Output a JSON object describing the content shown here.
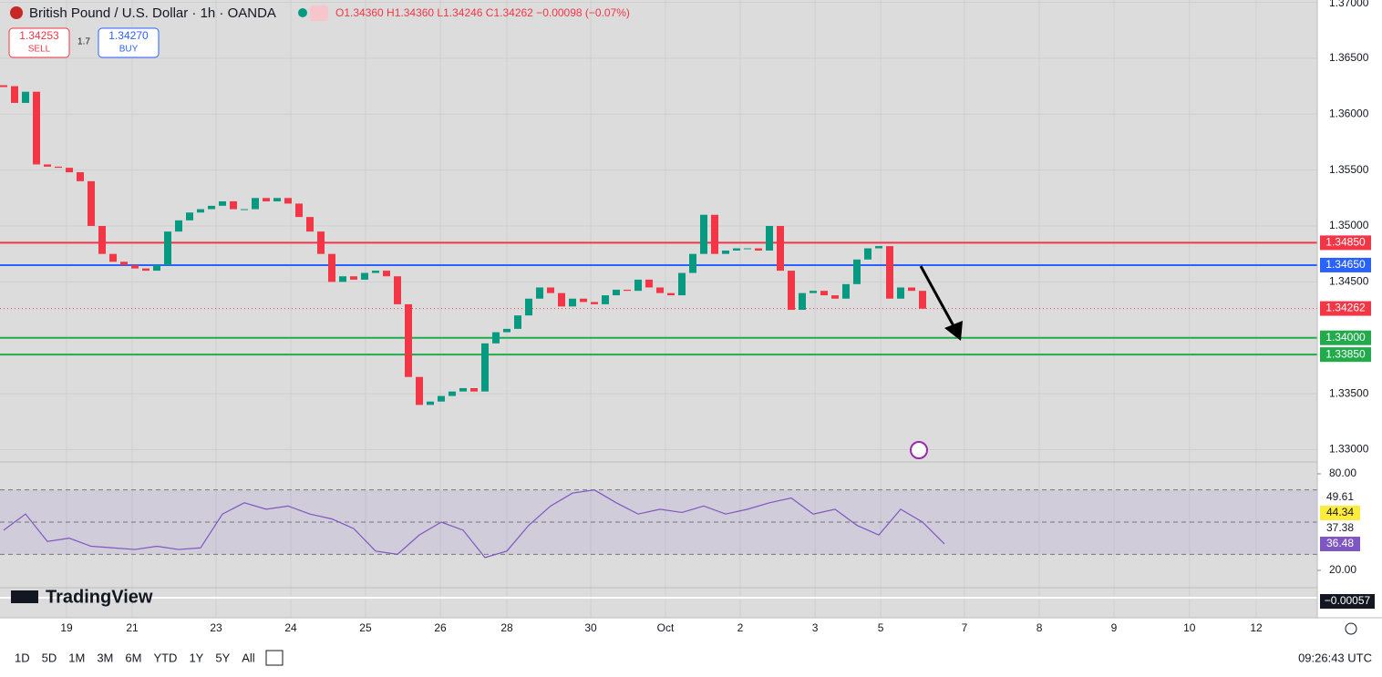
{
  "header": {
    "symbol": "British Pound / U.S. Dollar · 1h · OANDA",
    "ohlc": "O1.34360 H1.34360 L1.34246 C1.34262 −0.00098 (−0.07%)",
    "sell_price": "1.34253",
    "sell_label": "SELL",
    "spread": "1.7",
    "buy_price": "1.34270",
    "buy_label": "BUY"
  },
  "logo": "TradingView",
  "toolbar": {
    "ranges": [
      "1D",
      "5D",
      "1M",
      "3M",
      "6M",
      "YTD",
      "1Y",
      "5Y",
      "All"
    ],
    "clock": "09:26:43 UTC"
  },
  "chart_data": {
    "type": "candlestick",
    "closes": [
      1.3625,
      1.361,
      1.362,
      1.3555,
      1.3553,
      1.3552,
      1.3548,
      1.354,
      1.35,
      1.3475,
      1.3468,
      1.3465,
      1.3462,
      1.346,
      1.3465,
      1.3495,
      1.3505,
      1.3512,
      1.3515,
      1.3518,
      1.3522,
      1.3515,
      1.3515,
      1.3525,
      1.3522,
      1.3525,
      1.352,
      1.3508,
      1.3495,
      1.3475,
      1.345,
      1.3455,
      1.3452,
      1.3458,
      1.346,
      1.3455,
      1.343,
      1.3365,
      1.334,
      1.3343,
      1.3348,
      1.3352,
      1.3355,
      1.3352,
      1.3395,
      1.3405,
      1.3408,
      1.342,
      1.3435,
      1.3445,
      1.344,
      1.3428,
      1.3435,
      1.3432,
      1.343,
      1.3438,
      1.3443,
      1.3442,
      1.3452,
      1.3445,
      1.344,
      1.3438,
      1.3458,
      1.3475,
      1.351,
      1.3475,
      1.3478,
      1.348,
      1.348,
      1.3478,
      1.35,
      1.346,
      1.3425,
      1.344,
      1.3442,
      1.3438,
      1.3435,
      1.3448,
      1.347,
      1.348,
      1.3482,
      1.3435,
      1.3445,
      1.3442,
      1.3426
    ],
    "up_color": "#089981",
    "down_color": "#f23645",
    "ylim": [
      1.3289,
      1.3702
    ],
    "yticks": [
      {
        "value": 1.33,
        "label": "1.33000"
      },
      {
        "value": 1.335,
        "label": "1.33500"
      },
      {
        "value": 1.345,
        "label": "1.34500"
      },
      {
        "value": 1.35,
        "label": "1.35000"
      },
      {
        "value": 1.355,
        "label": "1.35500"
      },
      {
        "value": 1.36,
        "label": "1.36000"
      },
      {
        "value": 1.365,
        "label": "1.36500"
      },
      {
        "value": 1.37,
        "label": "1.37000"
      }
    ],
    "xticks": [
      {
        "value": 5.75,
        "label": "19"
      },
      {
        "value": 11.75,
        "label": "21"
      },
      {
        "value": 19.42,
        "label": "23"
      },
      {
        "value": 26.25,
        "label": "24"
      },
      {
        "value": 33.08,
        "label": "25"
      },
      {
        "value": 39.92,
        "label": "26"
      },
      {
        "value": 46,
        "label": "28"
      },
      {
        "value": 53.67,
        "label": "30"
      },
      {
        "value": 60.5,
        "label": "Oct"
      },
      {
        "value": 67.33,
        "label": "2"
      },
      {
        "value": 74.17,
        "label": "3"
      },
      {
        "value": 80.17,
        "label": "5"
      },
      {
        "value": 87.83,
        "label": "7"
      },
      {
        "value": 94.67,
        "label": "8"
      },
      {
        "value": 101.5,
        "label": "9"
      },
      {
        "value": 108.4,
        "label": "10"
      },
      {
        "value": 114.5,
        "label": "12"
      }
    ],
    "levels": [
      {
        "value": 1.3485,
        "label": "1.34850",
        "color": "#f23645"
      },
      {
        "value": 1.3465,
        "label": "1.34650",
        "color": "#2962ff"
      },
      {
        "value": 1.34,
        "label": "1.34000",
        "color": "#22ab4a"
      },
      {
        "value": 1.3385,
        "label": "1.33850",
        "color": "#22ab4a"
      }
    ],
    "last": {
      "value": 1.34262,
      "label": "1.34262",
      "color": "#f23645"
    },
    "rsi": {
      "values": [
        45,
        55,
        38,
        40,
        35,
        34,
        33,
        35,
        33,
        34,
        55,
        62,
        58,
        60,
        55,
        52,
        46,
        32,
        30,
        42,
        50,
        45,
        28,
        32,
        48,
        60,
        68,
        70,
        62,
        55,
        58,
        56,
        60,
        55,
        58,
        62,
        65,
        55,
        58,
        48,
        42,
        58,
        50,
        36.48
      ],
      "color": "#7e57c2",
      "ylim": [
        9.25,
        86.8
      ],
      "yticks": [
        {
          "value": 80,
          "label": "80.00"
        },
        {
          "value": 20,
          "label": "20.00"
        }
      ],
      "bands": [
        70,
        50,
        30
      ],
      "labels": [
        {
          "value": 49.61,
          "label": "49.61",
          "color": "#ffffff"
        },
        {
          "value": 44.34,
          "label": "44.34",
          "color": "#ffeb3b"
        },
        {
          "value": 37.38,
          "label": "37.38",
          "color": "#ffffff"
        },
        {
          "value": 36.48,
          "label": "36.48",
          "color": "#7e57c2"
        }
      ]
    },
    "macd_label": {
      "value": -0.00057,
      "label": "−0.00057"
    }
  }
}
